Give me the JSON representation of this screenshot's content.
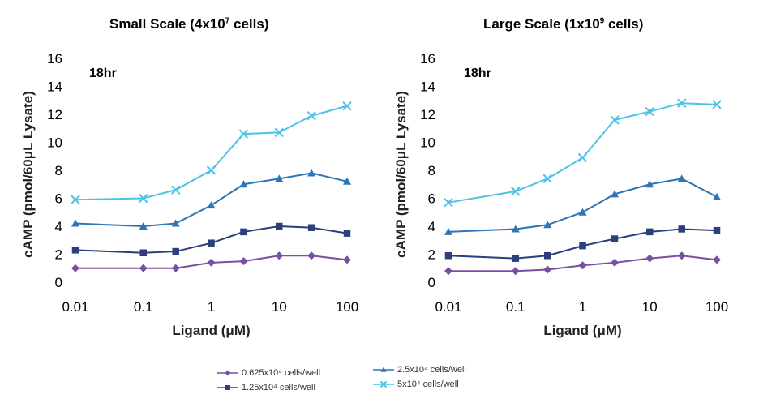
{
  "chart_data": [
    {
      "type": "line",
      "title_main": "Small Scale (4x10",
      "title_sup": "7",
      "title_tail": " cells)",
      "annotation": "18hr",
      "xlabel": "Ligand (μM)",
      "ylabel": "cAMP (pmol/60μL Lysate)",
      "x_scale": "log",
      "xlim": [
        0.01,
        100
      ],
      "ylim": [
        0,
        16
      ],
      "x_ticks": [
        "0.01",
        "0.1",
        "1",
        "10",
        "100"
      ],
      "y_ticks": [
        "0",
        "2",
        "4",
        "6",
        "8",
        "10",
        "12",
        "14",
        "16"
      ],
      "x": [
        0.01,
        0.1,
        0.3,
        1,
        3,
        10,
        30,
        100
      ],
      "series": [
        {
          "name": "0.625x10⁴ cells/well",
          "color": "#7a4fa0",
          "marker": "diamond",
          "values": [
            1.0,
            1.0,
            1.0,
            1.4,
            1.5,
            1.9,
            1.9,
            1.6
          ]
        },
        {
          "name": "1.25x10⁴ cells/well",
          "color": "#2b3f7a",
          "marker": "square",
          "values": [
            2.3,
            2.1,
            2.2,
            2.8,
            3.6,
            4.0,
            3.9,
            3.5
          ]
        },
        {
          "name": "2.5x10⁴ cells/well",
          "color": "#2f74b5",
          "marker": "triangle",
          "values": [
            4.2,
            4.0,
            4.2,
            5.5,
            7.0,
            7.4,
            7.8,
            7.2
          ]
        },
        {
          "name": "5x10⁴ cells/well",
          "color": "#4cc3e6",
          "marker": "x",
          "values": [
            5.9,
            6.0,
            6.6,
            8.0,
            10.6,
            10.7,
            11.9,
            12.6
          ]
        }
      ]
    },
    {
      "type": "line",
      "title_main": "Large Scale (1x10",
      "title_sup": "9",
      "title_tail": " cells)",
      "annotation": "18hr",
      "xlabel": "Ligand (μM)",
      "ylabel": "cAMP (pmol/60μL Lysate)",
      "x_scale": "log",
      "xlim": [
        0.01,
        100
      ],
      "ylim": [
        0,
        16
      ],
      "x_ticks": [
        "0.01",
        "0.1",
        "1",
        "10",
        "100"
      ],
      "y_ticks": [
        "0",
        "2",
        "4",
        "6",
        "8",
        "10",
        "12",
        "14",
        "16"
      ],
      "x": [
        0.01,
        0.1,
        0.3,
        1,
        3,
        10,
        30,
        100
      ],
      "series": [
        {
          "name": "0.625x10⁴ cells/well",
          "color": "#7a4fa0",
          "marker": "diamond",
          "values": [
            0.8,
            0.8,
            0.9,
            1.2,
            1.4,
            1.7,
            1.9,
            1.6
          ]
        },
        {
          "name": "1.25x10⁴ cells/well",
          "color": "#2b3f7a",
          "marker": "square",
          "values": [
            1.9,
            1.7,
            1.9,
            2.6,
            3.1,
            3.6,
            3.8,
            3.7
          ]
        },
        {
          "name": "2.5x10⁴ cells/well",
          "color": "#2f74b5",
          "marker": "triangle",
          "values": [
            3.6,
            3.8,
            4.1,
            5.0,
            6.3,
            7.0,
            7.4,
            6.1
          ]
        },
        {
          "name": "5x10⁴ cells/well",
          "color": "#4cc3e6",
          "marker": "x",
          "values": [
            5.7,
            6.5,
            7.4,
            8.9,
            11.6,
            12.2,
            12.8,
            12.7
          ]
        }
      ]
    }
  ],
  "legend": {
    "items": [
      {
        "label": "0.625x10⁴ cells/well",
        "color": "#7a4fa0",
        "marker": "diamond"
      },
      {
        "label": "2.5x10⁴ cells/well",
        "color": "#2f74b5",
        "marker": "triangle"
      },
      {
        "label": "1.25x10⁴ cells/well",
        "color": "#2b3f7a",
        "marker": "square"
      },
      {
        "label": "5x10⁴ cells/well",
        "color": "#4cc3e6",
        "marker": "x"
      }
    ]
  }
}
